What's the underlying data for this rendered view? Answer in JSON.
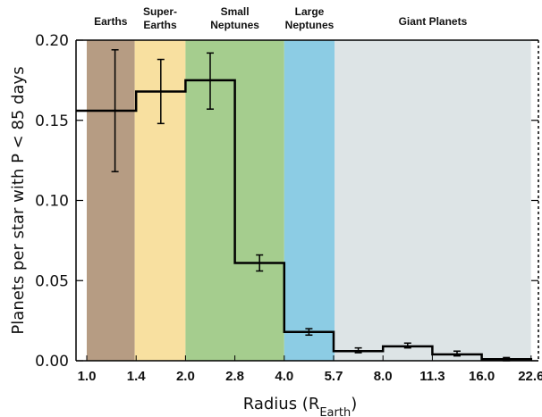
{
  "chart_data": {
    "type": "bar",
    "xlabel": {
      "main": "Radius (R",
      "sub": "Earth",
      "tail": ")"
    },
    "ylabel": "Planets per star with P < 85 days",
    "ylim": [
      0,
      0.2
    ],
    "yticks": [
      "0.00",
      "0.05",
      "0.10",
      "0.15",
      "0.20"
    ],
    "xticks": [
      "1.0",
      "1.4",
      "2.0",
      "2.8",
      "4.0",
      "5.7",
      "8.0",
      "11.3",
      "16.0",
      "22.6"
    ],
    "grid": false,
    "bands": [
      {
        "name": "Earths",
        "lines": [
          "Earths"
        ],
        "from": 1.0,
        "to": 1.4,
        "color": "#b69c83"
      },
      {
        "name": "Super-Earths",
        "lines": [
          "Super-",
          "Earths"
        ],
        "from": 1.4,
        "to": 2.0,
        "color": "#f8e0a0"
      },
      {
        "name": "Small Neptunes",
        "lines": [
          "Small",
          "Neptunes"
        ],
        "from": 2.0,
        "to": 4.0,
        "color": "#a5cd8e"
      },
      {
        "name": "Large Neptunes",
        "lines": [
          "Large",
          "Neptunes"
        ],
        "from": 4.0,
        "to": 5.7,
        "color": "#8ccce4"
      },
      {
        "name": "Giant Planets",
        "lines": [
          "Giant Planets"
        ],
        "from": 5.7,
        "to": 22.6,
        "color": "#dde4e6"
      }
    ],
    "bins": [
      {
        "from": "1.0",
        "to": "1.4",
        "value": 0.156,
        "err_low": 0.118,
        "err_high": 0.194
      },
      {
        "from": "1.4",
        "to": "2.0",
        "value": 0.168,
        "err_low": 0.148,
        "err_high": 0.188
      },
      {
        "from": "2.0",
        "to": "2.8",
        "value": 0.175,
        "err_low": 0.157,
        "err_high": 0.192
      },
      {
        "from": "2.8",
        "to": "4.0",
        "value": 0.061,
        "err_low": 0.056,
        "err_high": 0.066
      },
      {
        "from": "4.0",
        "to": "5.7",
        "value": 0.018,
        "err_low": 0.016,
        "err_high": 0.02
      },
      {
        "from": "5.7",
        "to": "8.0",
        "value": 0.006,
        "err_low": 0.005,
        "err_high": 0.008
      },
      {
        "from": "8.0",
        "to": "11.3",
        "value": 0.009,
        "err_low": 0.008,
        "err_high": 0.011
      },
      {
        "from": "11.3",
        "to": "16.0",
        "value": 0.004,
        "err_low": 0.003,
        "err_high": 0.006
      },
      {
        "from": "16.0",
        "to": "22.6",
        "value": 0.001,
        "err_low": 0.0,
        "err_high": 0.002
      }
    ]
  }
}
